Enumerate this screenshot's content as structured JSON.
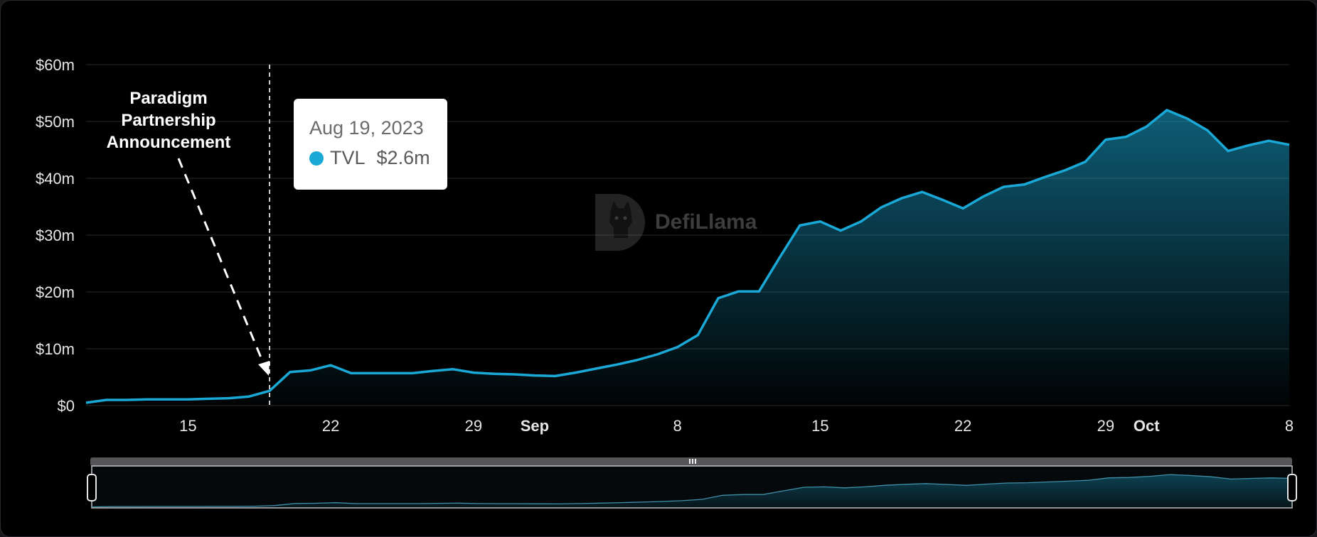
{
  "watermark": {
    "text": "DefiLlama"
  },
  "tooltip": {
    "date": "Aug 19, 2023",
    "series": "TVL",
    "value": "$2.6m"
  },
  "annotation": {
    "lines": [
      "Paradigm",
      "Partnership",
      "Announcement"
    ]
  },
  "colors": {
    "line": "#1aa9d6",
    "background": "#000000",
    "grid": "#1c1c1e",
    "text": "#e6e6e6"
  },
  "chart_data": {
    "type": "area",
    "series": [
      {
        "name": "TVL",
        "x": [
          "2023-08-10",
          "2023-08-11",
          "2023-08-12",
          "2023-08-13",
          "2023-08-14",
          "2023-08-15",
          "2023-08-16",
          "2023-08-17",
          "2023-08-18",
          "2023-08-19",
          "2023-08-20",
          "2023-08-21",
          "2023-08-22",
          "2023-08-23",
          "2023-08-24",
          "2023-08-25",
          "2023-08-26",
          "2023-08-27",
          "2023-08-28",
          "2023-08-29",
          "2023-08-30",
          "2023-08-31",
          "2023-09-01",
          "2023-09-02",
          "2023-09-03",
          "2023-09-04",
          "2023-09-05",
          "2023-09-06",
          "2023-09-07",
          "2023-09-08",
          "2023-09-09",
          "2023-09-10",
          "2023-09-11",
          "2023-09-12",
          "2023-09-13",
          "2023-09-14",
          "2023-09-15",
          "2023-09-16",
          "2023-09-17",
          "2023-09-18",
          "2023-09-19",
          "2023-09-20",
          "2023-09-21",
          "2023-09-22",
          "2023-09-23",
          "2023-09-24",
          "2023-09-25",
          "2023-09-26",
          "2023-09-27",
          "2023-09-28",
          "2023-09-29",
          "2023-09-30",
          "2023-10-01",
          "2023-10-02",
          "2023-10-03",
          "2023-10-04",
          "2023-10-05",
          "2023-10-06",
          "2023-10-07",
          "2023-10-08"
        ],
        "values": [
          0.5,
          1.0,
          1.0,
          1.1,
          1.1,
          1.1,
          1.2,
          1.3,
          1.6,
          2.6,
          5.9,
          6.2,
          7.1,
          5.7,
          5.7,
          5.7,
          5.7,
          6.1,
          6.4,
          5.8,
          5.6,
          5.5,
          5.3,
          5.2,
          5.8,
          6.5,
          7.2,
          8.0,
          9.0,
          10.3,
          12.4,
          18.9,
          20.1,
          20.1,
          26.0,
          31.7,
          32.4,
          30.8,
          32.4,
          34.9,
          36.5,
          37.6,
          36.2,
          34.7,
          36.8,
          38.5,
          38.9,
          40.2,
          41.4,
          42.9,
          46.8,
          47.3,
          49.1,
          52.0,
          50.5,
          48.4,
          44.8,
          45.8,
          46.6,
          45.9
        ]
      }
    ],
    "ylim": [
      0,
      60
    ],
    "yticks": [
      "$0",
      "$10m",
      "$20m",
      "$30m",
      "$40m",
      "$50m",
      "$60m"
    ],
    "xticks": [
      {
        "date": "2023-08-15",
        "label": "15",
        "bold": false
      },
      {
        "date": "2023-08-22",
        "label": "22",
        "bold": false
      },
      {
        "date": "2023-08-29",
        "label": "29",
        "bold": false
      },
      {
        "date": "2023-09-01",
        "label": "Sep",
        "bold": true
      },
      {
        "date": "2023-09-08",
        "label": "8",
        "bold": false
      },
      {
        "date": "2023-09-15",
        "label": "15",
        "bold": false
      },
      {
        "date": "2023-09-22",
        "label": "22",
        "bold": false
      },
      {
        "date": "2023-09-29",
        "label": "29",
        "bold": false
      },
      {
        "date": "2023-10-01",
        "label": "Oct",
        "bold": true
      },
      {
        "date": "2023-10-08",
        "label": "8",
        "bold": false
      }
    ],
    "hover_date": "2023-08-19",
    "grid": true,
    "title": "",
    "xlabel": "",
    "ylabel": ""
  }
}
